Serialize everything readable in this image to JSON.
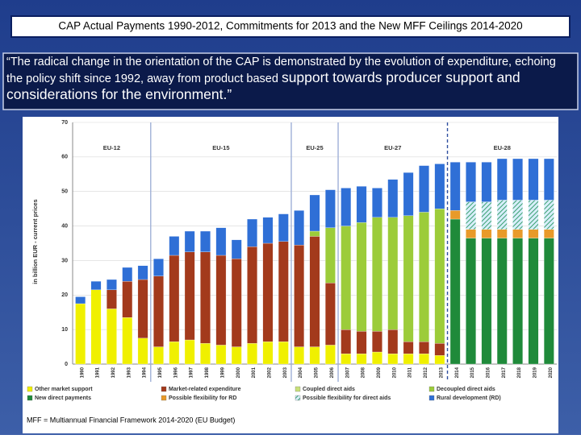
{
  "slide": {
    "title": "CAP Actual Payments 1990-2012, Commitments for 2013 and the New MFF Ceilings 2014-2020",
    "quote_start": "“The radical change in the orientation of the CAP is demonstrated by the evolution of expenditure, echoing the policy shift since 1992, away from product based",
    "quote_end": "support towards producer support and considerations for the environment.”",
    "footnote": "MFF = Multiannual Financial Framework 2014-2020 (EU Budget)"
  },
  "chart_data": {
    "type": "stacked-bar",
    "y_label": "in billion EUR - current prices",
    "annotations": [
      "EU-12",
      "EU-15",
      "EU-25",
      "EU-27",
      "EU-28"
    ],
    "categories": [
      "1990",
      "1991",
      "1992",
      "1993",
      "1994",
      "1995",
      "1996",
      "1997",
      "1998",
      "1999",
      "2000",
      "2001",
      "2002",
      "2003",
      "2004",
      "2005",
      "2006",
      "2007",
      "2008",
      "2009",
      "2010",
      "2011",
      "2012",
      "2013",
      "2014",
      "2015",
      "2016",
      "2017",
      "2018",
      "2019",
      "2020"
    ],
    "ylim": [
      0,
      70
    ],
    "yticks": [
      0,
      10,
      20,
      30,
      40,
      50,
      60,
      70
    ],
    "grid": true,
    "series": [
      {
        "name": "Other market support",
        "color": "#f0f000",
        "values": [
          17.5,
          21.5,
          16,
          13.5,
          7.5,
          5,
          6.5,
          7,
          6,
          5.5,
          5,
          6,
          6.5,
          6.5,
          5,
          5,
          5.5,
          3,
          3,
          3.5,
          3,
          3,
          3,
          2.5,
          null,
          null,
          null,
          null,
          null,
          null,
          null
        ]
      },
      {
        "name": "Market-related expenditure",
        "color": "#a33a1c",
        "values": [
          null,
          null,
          5.5,
          10.5,
          17,
          20.5,
          25,
          25.5,
          26.5,
          26,
          25.5,
          28,
          28.5,
          29,
          29.5,
          32,
          18,
          7,
          6.5,
          6,
          7,
          3.5,
          3.5,
          3.5,
          null,
          null,
          null,
          null,
          null,
          null,
          null
        ]
      },
      {
        "name": "Coupled direct aids",
        "color": "#c8e07a",
        "values": [
          null,
          null,
          null,
          null,
          null,
          null,
          null,
          null,
          null,
          null,
          null,
          null,
          null,
          null,
          null,
          null,
          null,
          null,
          null,
          null,
          null,
          null,
          null,
          null,
          null,
          null,
          null,
          null,
          null,
          null,
          null
        ]
      },
      {
        "name": "Decoupled direct aids",
        "color": "#9ccc3a",
        "values": [
          null,
          null,
          null,
          null,
          null,
          null,
          null,
          null,
          null,
          null,
          null,
          null,
          null,
          null,
          null,
          1.5,
          16,
          30,
          31.5,
          33,
          32.5,
          36.5,
          37.5,
          39,
          null,
          null,
          null,
          null,
          null,
          null,
          null
        ]
      },
      {
        "name": "New direct payments",
        "color": "#1f8a3a",
        "values": [
          null,
          null,
          null,
          null,
          null,
          null,
          null,
          null,
          null,
          null,
          null,
          null,
          null,
          null,
          null,
          null,
          null,
          null,
          null,
          null,
          null,
          null,
          null,
          null,
          42,
          36.5,
          36.5,
          36.5,
          36.5,
          36.5,
          36.5
        ]
      },
      {
        "name": "Possible flexibility for RD",
        "color": "#e89a2a",
        "values": [
          null,
          null,
          null,
          null,
          null,
          null,
          null,
          null,
          null,
          null,
          null,
          null,
          null,
          null,
          null,
          null,
          null,
          null,
          null,
          null,
          null,
          null,
          null,
          null,
          2.5,
          2.5,
          2.5,
          2.5,
          2.5,
          2.5,
          2.5
        ]
      },
      {
        "name": "Possible flexibility for direct aids",
        "color": "#7fc8a0",
        "hatch": true,
        "values": [
          null,
          null,
          null,
          null,
          null,
          null,
          null,
          null,
          null,
          null,
          null,
          null,
          null,
          null,
          null,
          null,
          null,
          null,
          null,
          null,
          null,
          null,
          null,
          null,
          null,
          8,
          8,
          8.5,
          8.5,
          8.5,
          8.5
        ]
      },
      {
        "name": "Rural development (RD)",
        "color": "#2f6fd6",
        "values": [
          2,
          2.5,
          3,
          4,
          4,
          5,
          5.5,
          6,
          6,
          8,
          5.5,
          8,
          7.5,
          8,
          10,
          10.5,
          11,
          11,
          10.5,
          8.5,
          11,
          12.5,
          13.5,
          13,
          14,
          11.5,
          11.5,
          12,
          12,
          12,
          12
        ]
      }
    ]
  }
}
